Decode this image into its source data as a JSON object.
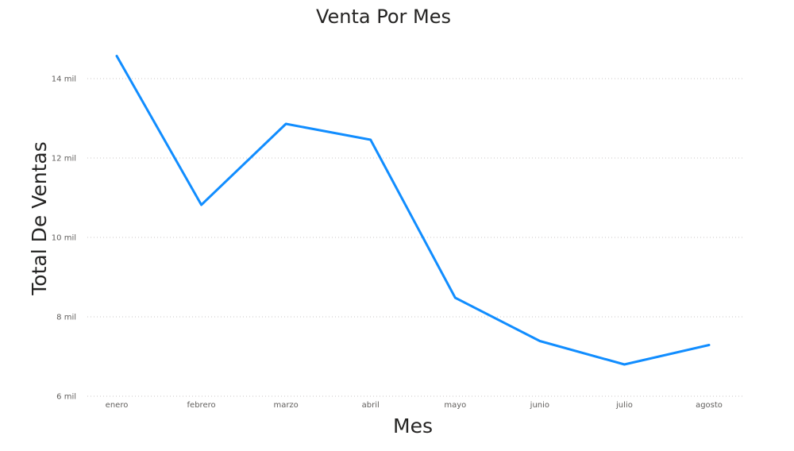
{
  "chart_data": {
    "type": "line",
    "title": "Venta Por Mes",
    "xlabel": "Mes",
    "ylabel": "Total De Ventas",
    "categories": [
      "enero",
      "febrero",
      "marzo",
      "abril",
      "mayo",
      "junio",
      "julio",
      "agosto"
    ],
    "series": [
      {
        "values": [
          14570,
          10820,
          12860,
          12460,
          8480,
          7390,
          6800,
          7290
        ]
      }
    ],
    "ylim": [
      6000,
      14000
    ],
    "yticks": [
      6000,
      8000,
      10000,
      12000,
      14000
    ],
    "ytick_labels": [
      "6 mil",
      "8 mil",
      "10 mil",
      "12 mil",
      "14 mil"
    ],
    "grid": true,
    "colors": {
      "line": "#118DFF",
      "grid": "#C8C6C4",
      "text": "#252423",
      "ticks": "#605E5C"
    }
  }
}
